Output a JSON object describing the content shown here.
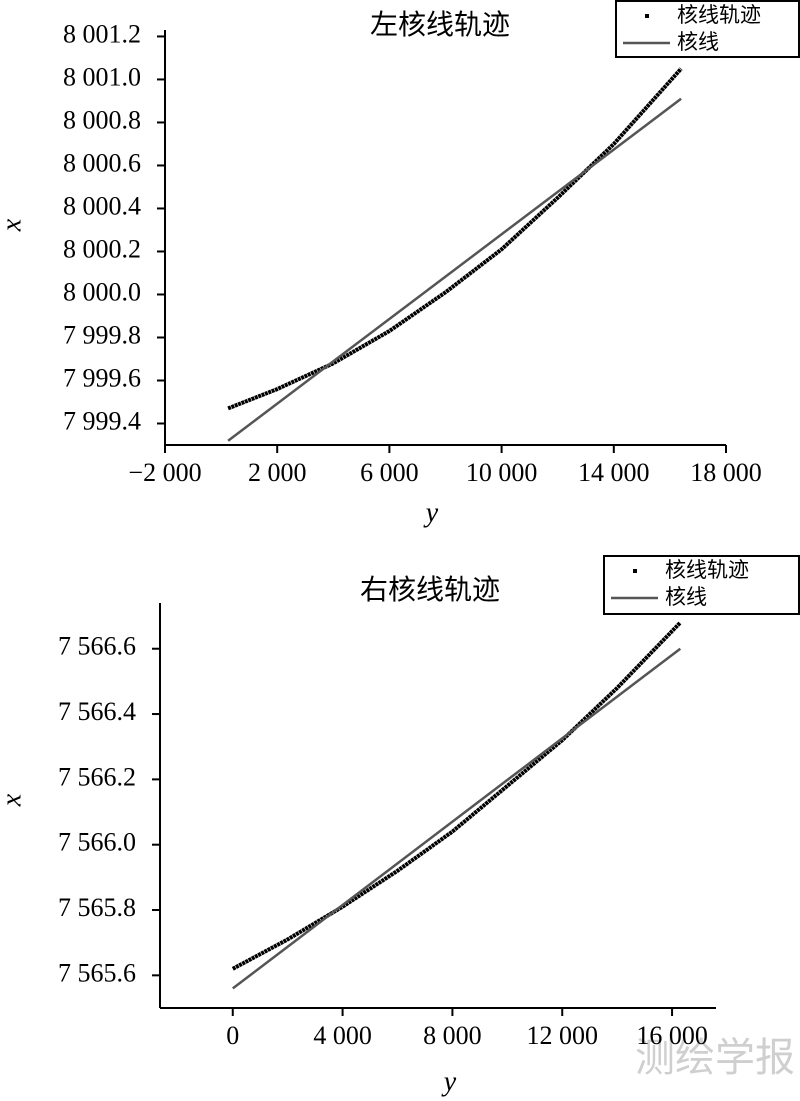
{
  "chart_data": [
    {
      "type": "line",
      "title": "左核线轨迹",
      "xlabel": "y",
      "ylabel": "x",
      "xlim": [
        -2000,
        18000
      ],
      "xticks": [
        {
          "value": -2000,
          "label": "−2 000"
        },
        {
          "value": 2000,
          "label": "2 000"
        },
        {
          "value": 6000,
          "label": "6 000"
        },
        {
          "value": 10000,
          "label": "10 000"
        },
        {
          "value": 14000,
          "label": "14 000"
        },
        {
          "value": 18000,
          "label": "18 000"
        }
      ],
      "ylim": [
        7999.3,
        8001.23
      ],
      "yticks": [
        {
          "value": 7999.4,
          "label": "7 999.4"
        },
        {
          "value": 7999.6,
          "label": "7 999.6"
        },
        {
          "value": 7999.8,
          "label": "7 999.8"
        },
        {
          "value": 8000.0,
          "label": "8 000.0"
        },
        {
          "value": 8000.2,
          "label": "8 000.2"
        },
        {
          "value": 8000.4,
          "label": "8 000.4"
        },
        {
          "value": 8000.6,
          "label": "8 000.6"
        },
        {
          "value": 8000.8,
          "label": "8 000.8"
        },
        {
          "value": 8001.0,
          "label": "8 001.0"
        },
        {
          "value": 8001.2,
          "label": "8 001.2"
        }
      ],
      "legend": "upper right",
      "series": [
        {
          "name": "核线轨迹",
          "mode": "markers",
          "color": "#000000",
          "x": [
            250,
            2000,
            4000,
            6000,
            8000,
            10000,
            12000,
            14000,
            16400
          ],
          "values": [
            7999.47,
            7999.56,
            7999.68,
            7999.83,
            8000.01,
            8000.21,
            8000.45,
            8000.7,
            8001.05
          ]
        },
        {
          "name": "核线",
          "mode": "lines",
          "color": "#555555",
          "x": [
            250,
            16400
          ],
          "values": [
            7999.32,
            8000.91
          ]
        }
      ]
    },
    {
      "type": "line",
      "title": "右核线轨迹",
      "xlabel": "y",
      "ylabel": "x",
      "xlim": [
        -2650,
        17600
      ],
      "xticks": [
        0,
        {
          "value": 4000,
          "label": "4 000"
        },
        {
          "value": 8000,
          "label": "8 000"
        },
        {
          "value": 12000,
          "label": "12 000"
        },
        {
          "value": 16000,
          "label": "16 000"
        }
      ],
      "ylim": [
        7565.5,
        7566.74
      ],
      "yticks": [
        {
          "value": 7565.6,
          "label": "7 565.6"
        },
        {
          "value": 7565.8,
          "label": "7 565.8"
        },
        {
          "value": 7566.0,
          "label": "7 566.0"
        },
        {
          "value": 7566.2,
          "label": "7 566.2"
        },
        {
          "value": 7566.4,
          "label": "7 566.4"
        },
        {
          "value": 7566.6,
          "label": "7 566.6"
        }
      ],
      "legend": "upper right",
      "series": [
        {
          "name": "核线轨迹",
          "mode": "markers",
          "color": "#000000",
          "x": [
            0,
            2000,
            4000,
            6000,
            8000,
            10000,
            12000,
            14000,
            16300
          ],
          "values": [
            7565.62,
            7565.71,
            7565.81,
            7565.92,
            7566.04,
            7566.18,
            7566.32,
            7566.48,
            7566.68
          ]
        },
        {
          "name": "核线",
          "mode": "lines",
          "color": "#555555",
          "x": [
            0,
            16300
          ],
          "values": [
            7565.56,
            7566.6
          ]
        }
      ]
    }
  ],
  "watermark": "测绘学报"
}
